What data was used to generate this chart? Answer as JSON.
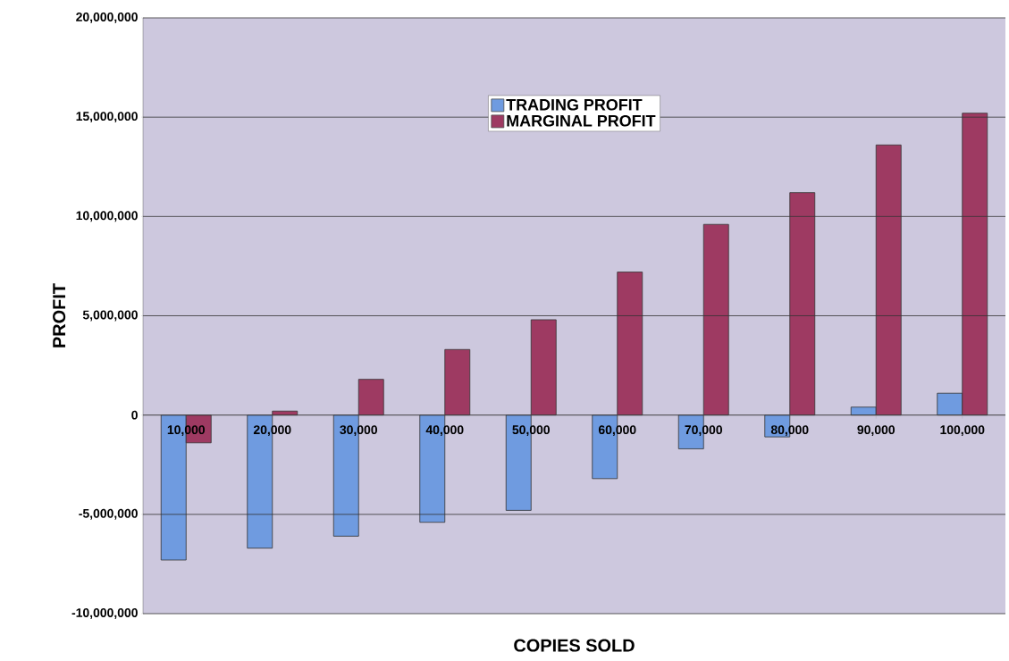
{
  "chart_data": {
    "type": "bar",
    "xlabel": "COPIES SOLD",
    "ylabel": "PROFIT",
    "categories": [
      "10,000",
      "20,000",
      "30,000",
      "40,000",
      "50,000",
      "60,000",
      "70,000",
      "80,000",
      "90,000",
      "100,000"
    ],
    "series": [
      {
        "name": "TRADING PROFIT",
        "color": "#6f9be0",
        "values": [
          -7300000,
          -6700000,
          -6100000,
          -5400000,
          -4800000,
          -3200000,
          -1700000,
          -1100000,
          400000,
          1100000
        ]
      },
      {
        "name": "MARGINAL PROFIT",
        "color": "#9e3a62",
        "values": [
          -1400000,
          200000,
          1800000,
          3300000,
          4800000,
          7200000,
          9600000,
          11200000,
          13600000,
          15200000
        ]
      }
    ],
    "ylim": [
      -10000000,
      20000000
    ],
    "yticks": [
      {
        "value": -10000000,
        "label": "-10,000,000"
      },
      {
        "value": -5000000,
        "label": "-5,000,000"
      },
      {
        "value": 0,
        "label": "0"
      },
      {
        "value": 5000000,
        "label": "5,000,000"
      },
      {
        "value": 10000000,
        "label": "10,000,000"
      },
      {
        "value": 15000000,
        "label": "15,000,000"
      },
      {
        "value": 20000000,
        "label": "20,000,000"
      }
    ],
    "grid": "y",
    "legend": "top"
  }
}
